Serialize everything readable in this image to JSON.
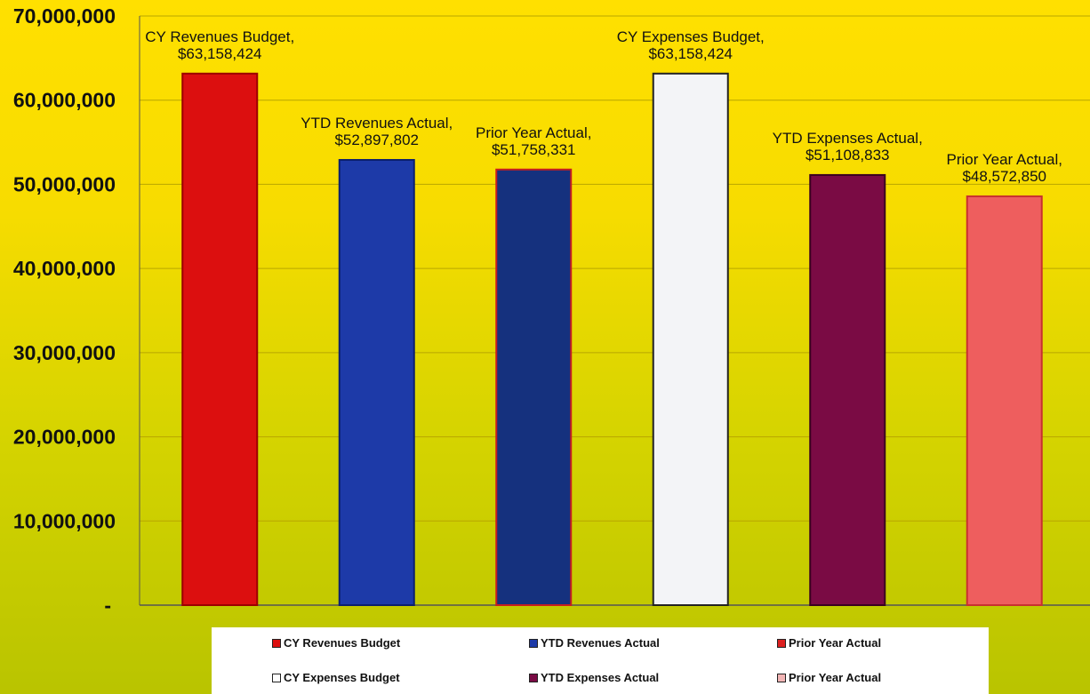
{
  "chart_data": {
    "type": "bar",
    "categories": [
      "CY Revenues Budget",
      "YTD Revenues Actual",
      "Prior Year Actual",
      "CY Expenses Budget",
      "YTD Expenses Actual",
      "Prior Year Actual"
    ],
    "values": [
      63158424,
      52897802,
      51758331,
      63158424,
      51108833,
      48572850
    ],
    "data_labels": [
      [
        "CY Revenues Budget,",
        "$63,158,424"
      ],
      [
        "YTD Revenues Actual,",
        "$52,897,802"
      ],
      [
        "Prior Year Actual,",
        "$51,758,331"
      ],
      [
        "CY Expenses Budget,",
        "$63,158,424"
      ],
      [
        "YTD Expenses Actual,",
        "$51,108,833"
      ],
      [
        "Prior Year Actual,",
        "$48,572,850"
      ]
    ],
    "colors": [
      "#dc0f0f",
      "#1d3aa8",
      "#15317e",
      "#f3f4f7",
      "#7a0b44",
      "#ee5e5e"
    ],
    "bar_borders": [
      "#9c0000",
      "#0b1f6e",
      "#c81e1e",
      "#222222",
      "#3a0020",
      "#c83030"
    ],
    "ylim": [
      0,
      70000000
    ],
    "yticks": [
      0,
      10000000,
      20000000,
      30000000,
      40000000,
      50000000,
      60000000,
      70000000
    ],
    "ytick_labels": [
      "-",
      "10,000,000",
      "20,000,000",
      "30,000,000",
      "40,000,000",
      "50,000,000",
      "60,000,000",
      "70,000,000"
    ],
    "grid": true,
    "legend_position": "bottom",
    "title": "",
    "xlabel": "",
    "ylabel": ""
  },
  "legend": {
    "items": [
      {
        "label": "CY Revenues Budget",
        "color": "#dc0f0f"
      },
      {
        "label": "YTD Revenues Actual",
        "color": "#1d3aa8"
      },
      {
        "label": "Prior Year Actual",
        "color": "#dc2020"
      },
      {
        "label": "CY Expenses Budget",
        "color": "#ffffff"
      },
      {
        "label": "YTD Expenses Actual",
        "color": "#7a0b44"
      },
      {
        "label": "Prior Year Actual",
        "color": "#f2b5b5"
      }
    ]
  }
}
